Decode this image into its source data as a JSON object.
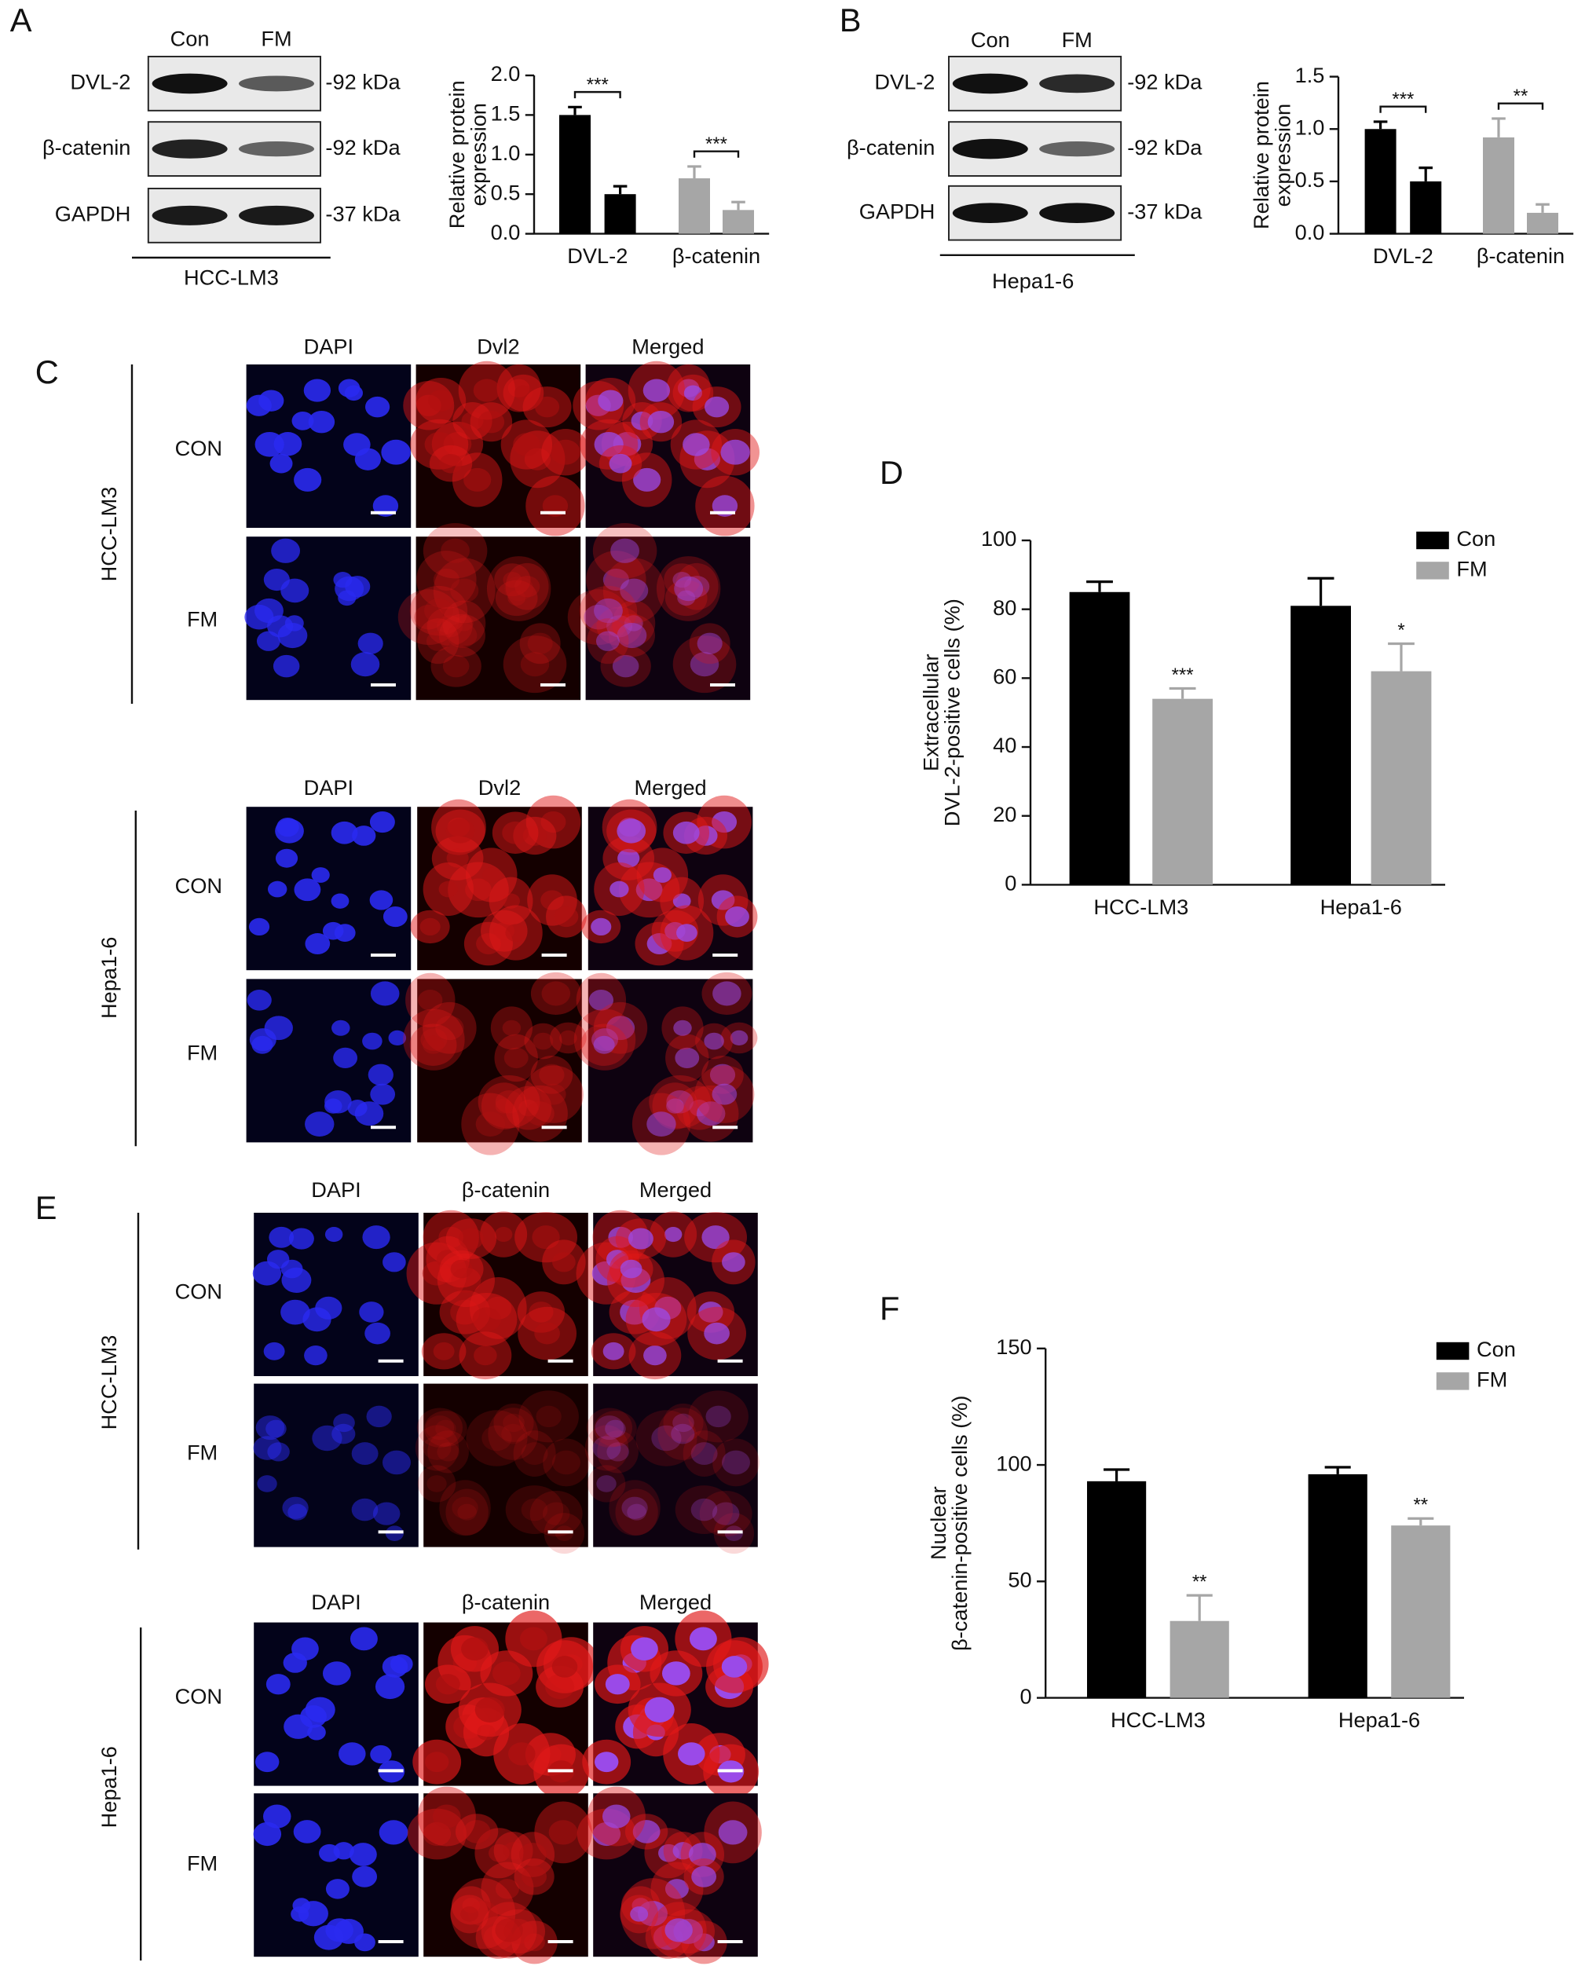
{
  "chart_data": [
    {
      "type": "bar",
      "ylabel": [
        "Relative protein",
        "expression"
      ],
      "categories": [
        "DVL-2",
        "β-catenin"
      ],
      "category_colors": [
        "#000000",
        "#a6a6a6"
      ],
      "series": [
        {
          "values": [
            1.5,
            0.7
          ],
          "errors": [
            0.1,
            0.15
          ]
        },
        {
          "values": [
            0.5,
            0.3
          ],
          "errors": [
            0.1,
            0.1
          ]
        }
      ],
      "significance": [
        "***",
        "***"
      ],
      "ylim": [
        0,
        2
      ],
      "yticks": [
        {
          "value": 0,
          "label": "0.0"
        },
        0.5,
        {
          "value": 1,
          "label": "1.0"
        },
        1.5,
        {
          "value": 2,
          "label": "2.0"
        }
      ]
    },
    {
      "type": "bar",
      "ylabel": [
        "Relative protein",
        "expression"
      ],
      "categories": [
        "DVL-2",
        "β-catenin"
      ],
      "category_colors": [
        "#000000",
        "#a6a6a6"
      ],
      "series": [
        {
          "values": [
            1.0,
            0.92
          ],
          "errors": [
            0.07,
            0.18
          ]
        },
        {
          "values": [
            0.5,
            0.2
          ],
          "errors": [
            0.13,
            0.08
          ]
        }
      ],
      "significance": [
        "***",
        "**"
      ],
      "ylim": [
        0,
        1.5
      ],
      "yticks": [
        {
          "value": 0,
          "label": "0.0"
        },
        0.5,
        {
          "value": 1,
          "label": "1.0"
        },
        1.5
      ]
    },
    {
      "type": "bar",
      "panel": "D",
      "ylabel": [
        "Extracellular",
        "DVL-2-positive cells (%)"
      ],
      "categories": [
        "HCC-LM3",
        "Hepa1-6"
      ],
      "series": [
        {
          "name": "Con",
          "color": "#000000",
          "values": [
            85,
            81
          ],
          "errors": [
            3,
            8
          ]
        },
        {
          "name": "FM",
          "color": "#a6a6a6",
          "values": [
            54,
            62
          ],
          "errors": [
            3,
            8
          ]
        }
      ],
      "significance": [
        "***",
        "*"
      ],
      "legend": "upper right",
      "ylim": [
        0,
        100
      ],
      "yticks": [
        0,
        20,
        40,
        60,
        80,
        100
      ]
    },
    {
      "type": "bar",
      "panel": "F",
      "ylabel": [
        "Nuclear",
        "β-catenin-positive cells (%)"
      ],
      "categories": [
        "HCC-LM3",
        "Hepa1-6"
      ],
      "series": [
        {
          "name": "Con",
          "color": "#000000",
          "values": [
            93,
            96
          ],
          "errors": [
            5,
            3
          ]
        },
        {
          "name": "FM",
          "color": "#a6a6a6",
          "values": [
            33,
            74
          ],
          "errors": [
            11,
            3
          ]
        }
      ],
      "significance": [
        "**",
        "**"
      ],
      "legend": "upper right",
      "ylim": [
        0,
        150
      ],
      "yticks": [
        0,
        50,
        100,
        150
      ]
    }
  ],
  "blots": [
    {
      "panel": "A",
      "lanes": [
        "Con",
        "FM"
      ],
      "rows": [
        {
          "protein": "DVL-2",
          "size": "-92 kDa"
        },
        {
          "protein": "β-catenin",
          "size": "-92 kDa"
        },
        {
          "protein": "GAPDH",
          "size": "-37 kDa"
        }
      ],
      "cell_line": "HCC-LM3"
    },
    {
      "panel": "B",
      "lanes": [
        "Con",
        "FM"
      ],
      "rows": [
        {
          "protein": "DVL-2",
          "size": "-92 kDa"
        },
        {
          "protein": "β-catenin",
          "size": "-92 kDa"
        },
        {
          "protein": "GAPDH",
          "size": "-37 kDa"
        }
      ],
      "cell_line": "Hepa1-6"
    }
  ],
  "microscopy": [
    {
      "panel": "C",
      "columns": [
        "DAPI",
        "Dvl2",
        "Merged"
      ],
      "groups": [
        {
          "name": "HCC-LM3",
          "rows": [
            "CON",
            "FM"
          ]
        },
        {
          "name": "Hepa1-6",
          "rows": [
            "CON",
            "FM"
          ]
        }
      ]
    },
    {
      "panel": "E",
      "columns": [
        "DAPI",
        "β-catenin",
        "Merged"
      ],
      "groups": [
        {
          "name": "HCC-LM3",
          "rows": [
            "CON",
            "FM"
          ]
        },
        {
          "name": "Hepa1-6",
          "rows": [
            "CON",
            "FM"
          ]
        }
      ]
    }
  ]
}
